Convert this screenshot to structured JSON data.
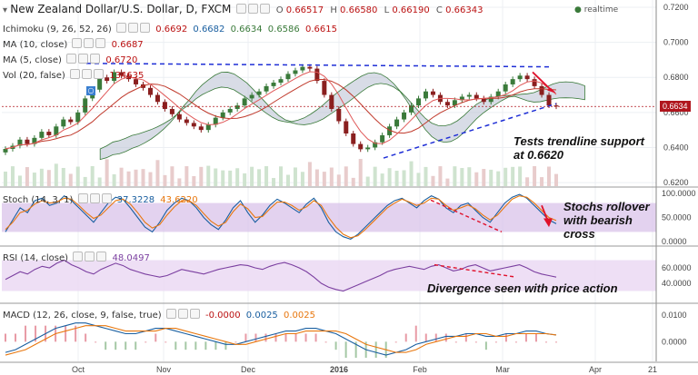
{
  "header": {
    "symbol_title": "New Zealand Dollar/U.S. Dollar, D, FXCM",
    "ohlc": {
      "o_label": "O",
      "o": "0.66517",
      "h_label": "H",
      "h": "0.66580",
      "l_label": "L",
      "l": "0.66190",
      "c_label": "C",
      "c": "0.66343"
    },
    "realtime_label": "realtime"
  },
  "indicators": {
    "ichimoku": {
      "label": "Ichimoku (9, 26, 52, 26)",
      "values": [
        "0.6692",
        "0.6682",
        "0.6634",
        "0.6586",
        "0.6615"
      ]
    },
    "ma10": {
      "label": "MA (10, close)",
      "value": "0.6687"
    },
    "ma5": {
      "label": "MA (5, close)",
      "value": "0.6720"
    },
    "vol": {
      "label": "Vol (20, false)",
      "value": "134635"
    },
    "stoch": {
      "label": "Stoch (14, 3, 1)",
      "k": "37.3228",
      "d": "43.6220"
    },
    "rsi": {
      "label": "RSI (14, close)",
      "value": "48.0497"
    },
    "macd": {
      "label": "MACD (12, 26, close, 9, false, true)",
      "values": [
        "-0.0000",
        "0.0025",
        "0.0025"
      ]
    }
  },
  "price_tag": "0.6634",
  "annotations": {
    "trendline": [
      "Tests trendline support",
      "at 0.6620"
    ],
    "stochs": [
      "Stochs rollover",
      "with bearish",
      "cross"
    ],
    "divergence": "Divergence seen with price action"
  },
  "colors": {
    "up": "#3a7a3a",
    "down": "#8a1f1f",
    "ichimoku_cloud": "#b8bfd1",
    "stoch_band": "#d7bfe8",
    "rsi_band": "#ecdcf4",
    "trendline": "#1f2fd6",
    "arrow": "#e0112b",
    "ma": "#c0392b",
    "tag_bg": "#b0161e"
  },
  "chart_data": [
    {
      "type": "candlestick",
      "title": "New Zealand Dollar/U.S. Dollar, D, FXCM",
      "x_tick_labels": [
        "Oct",
        "Nov",
        "Dec",
        "2016",
        "Feb",
        "Mar",
        "Apr",
        "21"
      ],
      "y_tick_labels": [
        "0.7200",
        "0.7000",
        "0.6800",
        "0.6600",
        "0.6400",
        "0.6200"
      ],
      "ylim": [
        0.619,
        0.72
      ],
      "series": [
        {
          "name": "close",
          "values": [
            0.6392,
            0.641,
            0.6445,
            0.642,
            0.6455,
            0.649,
            0.647,
            0.652,
            0.656,
            0.6545,
            0.66,
            0.668,
            0.673,
            0.68,
            0.678,
            0.683,
            0.681,
            0.679,
            0.676,
            0.674,
            0.67,
            0.666,
            0.662,
            0.659,
            0.656,
            0.654,
            0.652,
            0.65,
            0.653,
            0.657,
            0.66,
            0.662,
            0.664,
            0.668,
            0.67,
            0.672,
            0.675,
            0.677,
            0.679,
            0.682,
            0.684,
            0.686,
            0.685,
            0.678,
            0.67,
            0.662,
            0.655,
            0.648,
            0.642,
            0.639,
            0.64,
            0.643,
            0.647,
            0.652,
            0.656,
            0.66,
            0.664,
            0.668,
            0.672,
            0.67,
            0.666,
            0.664,
            0.667,
            0.669,
            0.67,
            0.668,
            0.666,
            0.669,
            0.672,
            0.676,
            0.679,
            0.681,
            0.679,
            0.675,
            0.67,
            0.664,
            0.6634
          ]
        }
      ],
      "annotations": [
        "Tests trendline support at 0.6620"
      ]
    },
    {
      "type": "line",
      "name": "Stoch (14, 3, 1)",
      "y_tick_labels": [
        "100.0000",
        "50.0000",
        "0.0000"
      ],
      "ylim": [
        0,
        100
      ],
      "series": [
        {
          "name": "%K",
          "values": [
            20,
            45,
            70,
            60,
            85,
            90,
            75,
            80,
            95,
            85,
            70,
            55,
            40,
            60,
            80,
            92,
            88,
            70,
            50,
            30,
            20,
            40,
            65,
            80,
            90,
            85,
            70,
            50,
            35,
            25,
            45,
            70,
            85,
            60,
            40,
            55,
            75,
            88,
            80,
            70,
            60,
            78,
            90,
            70,
            40,
            20,
            10,
            5,
            15,
            30,
            45,
            60,
            75,
            85,
            90,
            80,
            70,
            85,
            95,
            88,
            70,
            60,
            75,
            80,
            65,
            50,
            40,
            60,
            80,
            92,
            98,
            90,
            75,
            60,
            45,
            37
          ]
        },
        {
          "name": "%D",
          "values": [
            25,
            40,
            60,
            65,
            78,
            85,
            80,
            82,
            90,
            88,
            75,
            60,
            48,
            55,
            70,
            85,
            88,
            78,
            60,
            40,
            28,
            35,
            55,
            72,
            85,
            85,
            75,
            58,
            42,
            32,
            40,
            62,
            78,
            68,
            50,
            52,
            68,
            82,
            82,
            75,
            65,
            72,
            85,
            75,
            50,
            30,
            15,
            8,
            12,
            25,
            40,
            55,
            70,
            80,
            88,
            82,
            75,
            80,
            90,
            88,
            75,
            65,
            70,
            76,
            68,
            55,
            45,
            55,
            72,
            88,
            95,
            92,
            80,
            65,
            50,
            43.6
          ]
        }
      ]
    },
    {
      "type": "line",
      "name": "RSI (14, close)",
      "y_tick_labels": [
        "60.0000",
        "40.0000"
      ],
      "ylim": [
        20,
        80
      ],
      "series": [
        {
          "name": "RSI",
          "values": [
            45,
            50,
            55,
            52,
            58,
            62,
            60,
            66,
            70,
            64,
            60,
            55,
            52,
            58,
            62,
            66,
            63,
            58,
            55,
            52,
            50,
            48,
            50,
            54,
            58,
            56,
            54,
            52,
            55,
            58,
            60,
            62,
            64,
            63,
            60,
            58,
            62,
            65,
            67,
            64,
            60,
            55,
            48,
            40,
            35,
            32,
            30,
            34,
            38,
            42,
            46,
            50,
            55,
            58,
            60,
            62,
            60,
            58,
            62,
            64,
            60,
            56,
            58,
            62,
            64,
            60,
            56,
            58,
            60,
            62,
            64,
            60,
            55,
            52,
            50,
            48
          ]
        }
      ]
    },
    {
      "type": "line",
      "name": "MACD (12, 26, close, 9, false, true)",
      "y_tick_labels": [
        "0.0100",
        "0.0000"
      ],
      "ylim": [
        -0.006,
        0.012
      ],
      "series": [
        {
          "name": "MACD",
          "values": [
            -0.004,
            -0.003,
            -0.001,
            0.001,
            0.003,
            0.005,
            0.006,
            0.007,
            0.007,
            0.006,
            0.005,
            0.004,
            0.003,
            0.003,
            0.004,
            0.005,
            0.005,
            0.004,
            0.003,
            0.002,
            0.001,
            0.0,
            -0.001,
            -0.001,
            0.0,
            0.001,
            0.002,
            0.003,
            0.004,
            0.004,
            0.005,
            0.005,
            0.004,
            0.003,
            0.001,
            -0.001,
            -0.003,
            -0.004,
            -0.005,
            -0.004,
            -0.003,
            -0.001,
            0.0,
            0.001,
            0.002,
            0.002,
            0.003,
            0.003,
            0.002,
            0.002,
            0.003,
            0.003,
            0.004,
            0.004,
            0.003,
            0.0025
          ]
        },
        {
          "name": "Signal",
          "values": [
            -0.005,
            -0.004,
            -0.003,
            -0.001,
            0.001,
            0.003,
            0.004,
            0.005,
            0.006,
            0.006,
            0.006,
            0.005,
            0.004,
            0.004,
            0.004,
            0.004,
            0.005,
            0.005,
            0.004,
            0.003,
            0.002,
            0.001,
            0.0,
            -0.001,
            -0.001,
            0.0,
            0.001,
            0.002,
            0.003,
            0.003,
            0.004,
            0.004,
            0.004,
            0.004,
            0.003,
            0.001,
            -0.001,
            -0.002,
            -0.003,
            -0.004,
            -0.004,
            -0.003,
            -0.001,
            0.0,
            0.001,
            0.002,
            0.002,
            0.003,
            0.003,
            0.002,
            0.002,
            0.003,
            0.003,
            0.003,
            0.003,
            0.0025
          ]
        }
      ]
    }
  ]
}
